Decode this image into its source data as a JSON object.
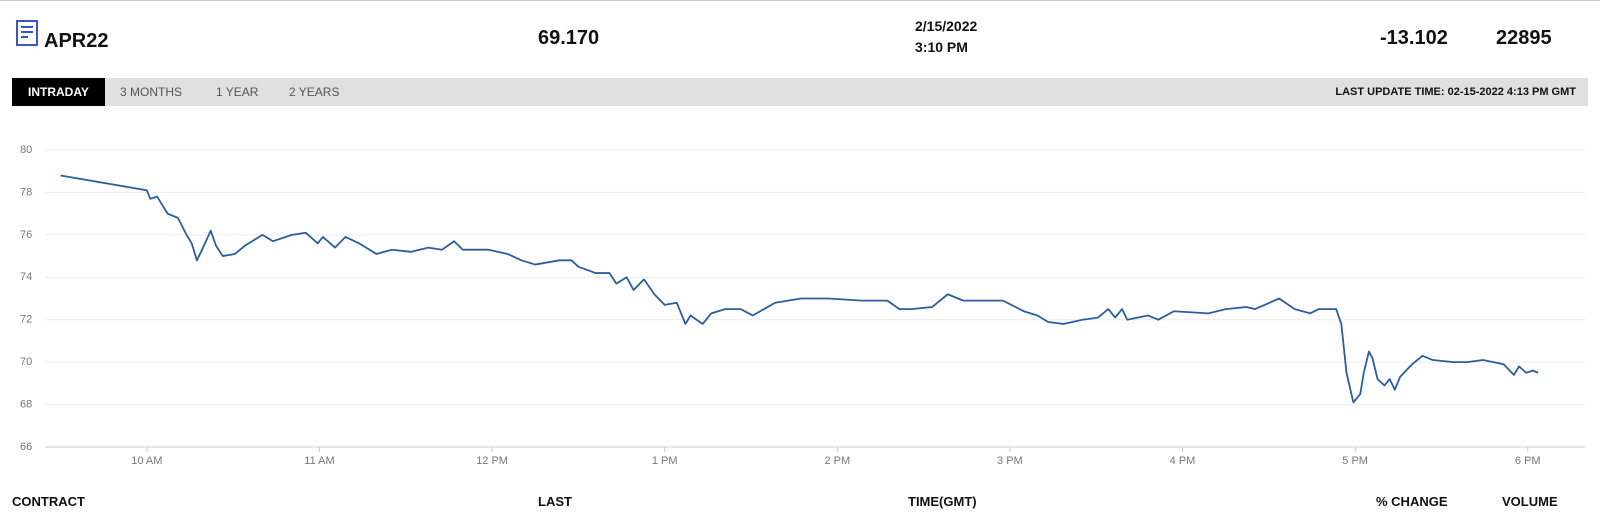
{
  "header": {
    "contract": "APR22",
    "last": "69.170",
    "date": "2/15/2022",
    "time": "3:10 PM",
    "change": "-13.102",
    "volume": "22895"
  },
  "tabs": [
    "INTRADAY",
    "3 MONTHS",
    "1 YEAR",
    "2 YEARS"
  ],
  "last_update": "LAST UPDATE TIME: 02-15-2022 4:13 PM GMT",
  "footer": [
    "CONTRACT",
    "LAST",
    "TIME(GMT)",
    "% CHANGE",
    "VOLUME"
  ],
  "chart_data": {
    "type": "line",
    "color": "#2a5f9e",
    "grid": true,
    "xlim": [
      9.41,
      18.1
    ],
    "ylim": [
      66,
      80
    ],
    "yticks": [
      66,
      68,
      70,
      72,
      74,
      76,
      78,
      80
    ],
    "xticks": [
      {
        "value": 10,
        "label": "10 AM"
      },
      {
        "value": 11,
        "label": "11 AM"
      },
      {
        "value": 12,
        "label": "12 PM"
      },
      {
        "value": 13,
        "label": "1 PM"
      },
      {
        "value": 14,
        "label": "2 PM"
      },
      {
        "value": 15,
        "label": "3 PM"
      },
      {
        "value": 16,
        "label": "4 PM"
      },
      {
        "value": 17,
        "label": "5 PM"
      },
      {
        "value": 18,
        "label": "6 PM"
      }
    ],
    "x": [
      9.5,
      10.0,
      10.02,
      10.06,
      10.12,
      10.18,
      10.23,
      10.26,
      10.29,
      10.32,
      10.37,
      10.4,
      10.44,
      10.51,
      10.57,
      10.67,
      10.73,
      10.84,
      10.92,
      10.99,
      11.02,
      11.09,
      11.15,
      11.23,
      11.33,
      11.42,
      11.53,
      11.63,
      11.71,
      11.78,
      11.83,
      11.98,
      12.09,
      12.17,
      12.25,
      12.39,
      12.46,
      12.5,
      12.6,
      12.68,
      12.72,
      12.78,
      12.82,
      12.88,
      12.94,
      13.0,
      13.07,
      13.12,
      13.15,
      13.22,
      13.27,
      13.35,
      13.44,
      13.51,
      13.64,
      13.79,
      13.95,
      14.14,
      14.29,
      14.36,
      14.43,
      14.55,
      14.64,
      14.73,
      14.9,
      14.96,
      15.08,
      15.16,
      15.22,
      15.31,
      15.42,
      15.51,
      15.57,
      15.61,
      15.65,
      15.68,
      15.8,
      15.86,
      15.95,
      16.15,
      16.25,
      16.37,
      16.42,
      16.56,
      16.65,
      16.74,
      16.79,
      16.89,
      16.92,
      16.95,
      16.99,
      17.03,
      17.05,
      17.08,
      17.1,
      17.13,
      17.17,
      17.2,
      17.23,
      17.26,
      17.33,
      17.39,
      17.45,
      17.57,
      17.65,
      17.74,
      17.86,
      17.92,
      17.95,
      17.99,
      18.03,
      18.06
    ],
    "values": [
      78.8,
      78.1,
      77.7,
      77.8,
      77.0,
      76.8,
      76.0,
      75.6,
      74.8,
      75.3,
      76.2,
      75.5,
      75.0,
      75.1,
      75.5,
      76.0,
      75.7,
      76.0,
      76.1,
      75.6,
      75.9,
      75.4,
      75.9,
      75.6,
      75.1,
      75.3,
      75.2,
      75.4,
      75.3,
      75.7,
      75.3,
      75.3,
      75.1,
      74.8,
      74.6,
      74.8,
      74.8,
      74.5,
      74.2,
      74.2,
      73.7,
      74.0,
      73.4,
      73.9,
      73.2,
      72.7,
      72.8,
      71.8,
      72.2,
      71.8,
      72.3,
      72.5,
      72.5,
      72.2,
      72.8,
      73.0,
      73.0,
      72.9,
      72.9,
      72.5,
      72.5,
      72.6,
      73.2,
      72.9,
      72.9,
      72.9,
      72.4,
      72.2,
      71.9,
      71.8,
      72.0,
      72.1,
      72.5,
      72.1,
      72.5,
      72.0,
      72.2,
      72.0,
      72.4,
      72.3,
      72.5,
      72.6,
      72.5,
      73.0,
      72.5,
      72.3,
      72.5,
      72.5,
      71.8,
      69.5,
      68.1,
      68.5,
      69.5,
      70.5,
      70.2,
      69.2,
      68.9,
      69.2,
      68.7,
      69.3,
      69.9,
      70.3,
      70.1,
      70.0,
      70.0,
      70.1,
      69.9,
      69.4,
      69.8,
      69.5,
      69.6,
      69.5
    ]
  }
}
